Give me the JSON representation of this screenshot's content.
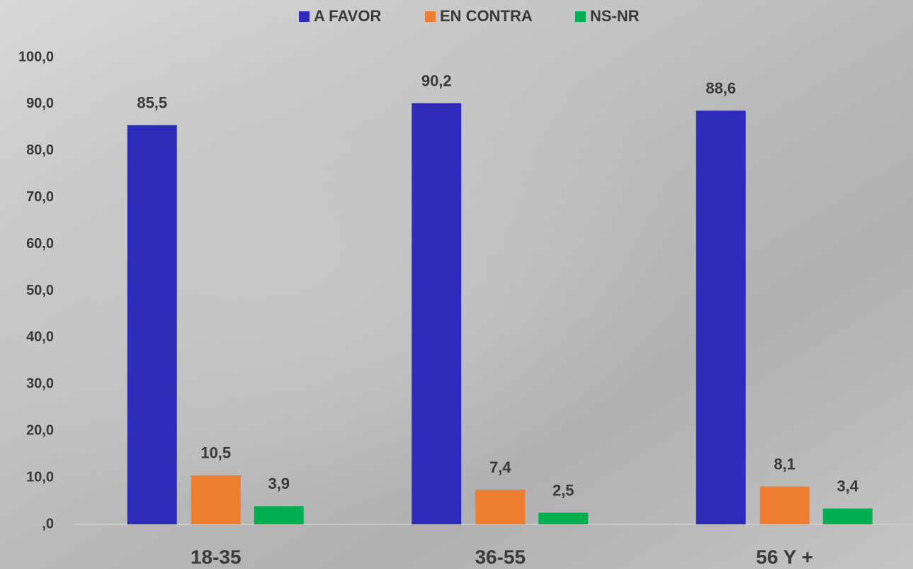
{
  "chart_data": {
    "type": "bar",
    "categories": [
      "18-35",
      "36-55",
      "56 Y +"
    ],
    "series": [
      {
        "name": "A FAVOR",
        "color": "#2e2bb8",
        "values": [
          85.5,
          90.2,
          88.6
        ],
        "value_labels": [
          "85,5",
          "90,2",
          "88,6"
        ]
      },
      {
        "name": "EN CONTRA",
        "color": "#ed7d31",
        "values": [
          10.5,
          7.4,
          8.1
        ],
        "value_labels": [
          "10,5",
          "7,4",
          "8,1"
        ]
      },
      {
        "name": "NS-NR",
        "color": "#00b050",
        "values": [
          3.9,
          2.5,
          3.4
        ],
        "value_labels": [
          "3,9",
          "2,5",
          "3,4"
        ]
      }
    ],
    "ylim": [
      0,
      100
    ],
    "yticks": [
      {
        "value": 0,
        "label": ",0"
      },
      {
        "value": 10,
        "label": "10,0"
      },
      {
        "value": 20,
        "label": "20,0"
      },
      {
        "value": 30,
        "label": "30,0"
      },
      {
        "value": 40,
        "label": "40,0"
      },
      {
        "value": 50,
        "label": "50,0"
      },
      {
        "value": 60,
        "label": "60,0"
      },
      {
        "value": 70,
        "label": "70,0"
      },
      {
        "value": 80,
        "label": "80,0"
      },
      {
        "value": 90,
        "label": "90,0"
      },
      {
        "value": 100,
        "label": "100,0"
      }
    ],
    "legend": "top"
  }
}
